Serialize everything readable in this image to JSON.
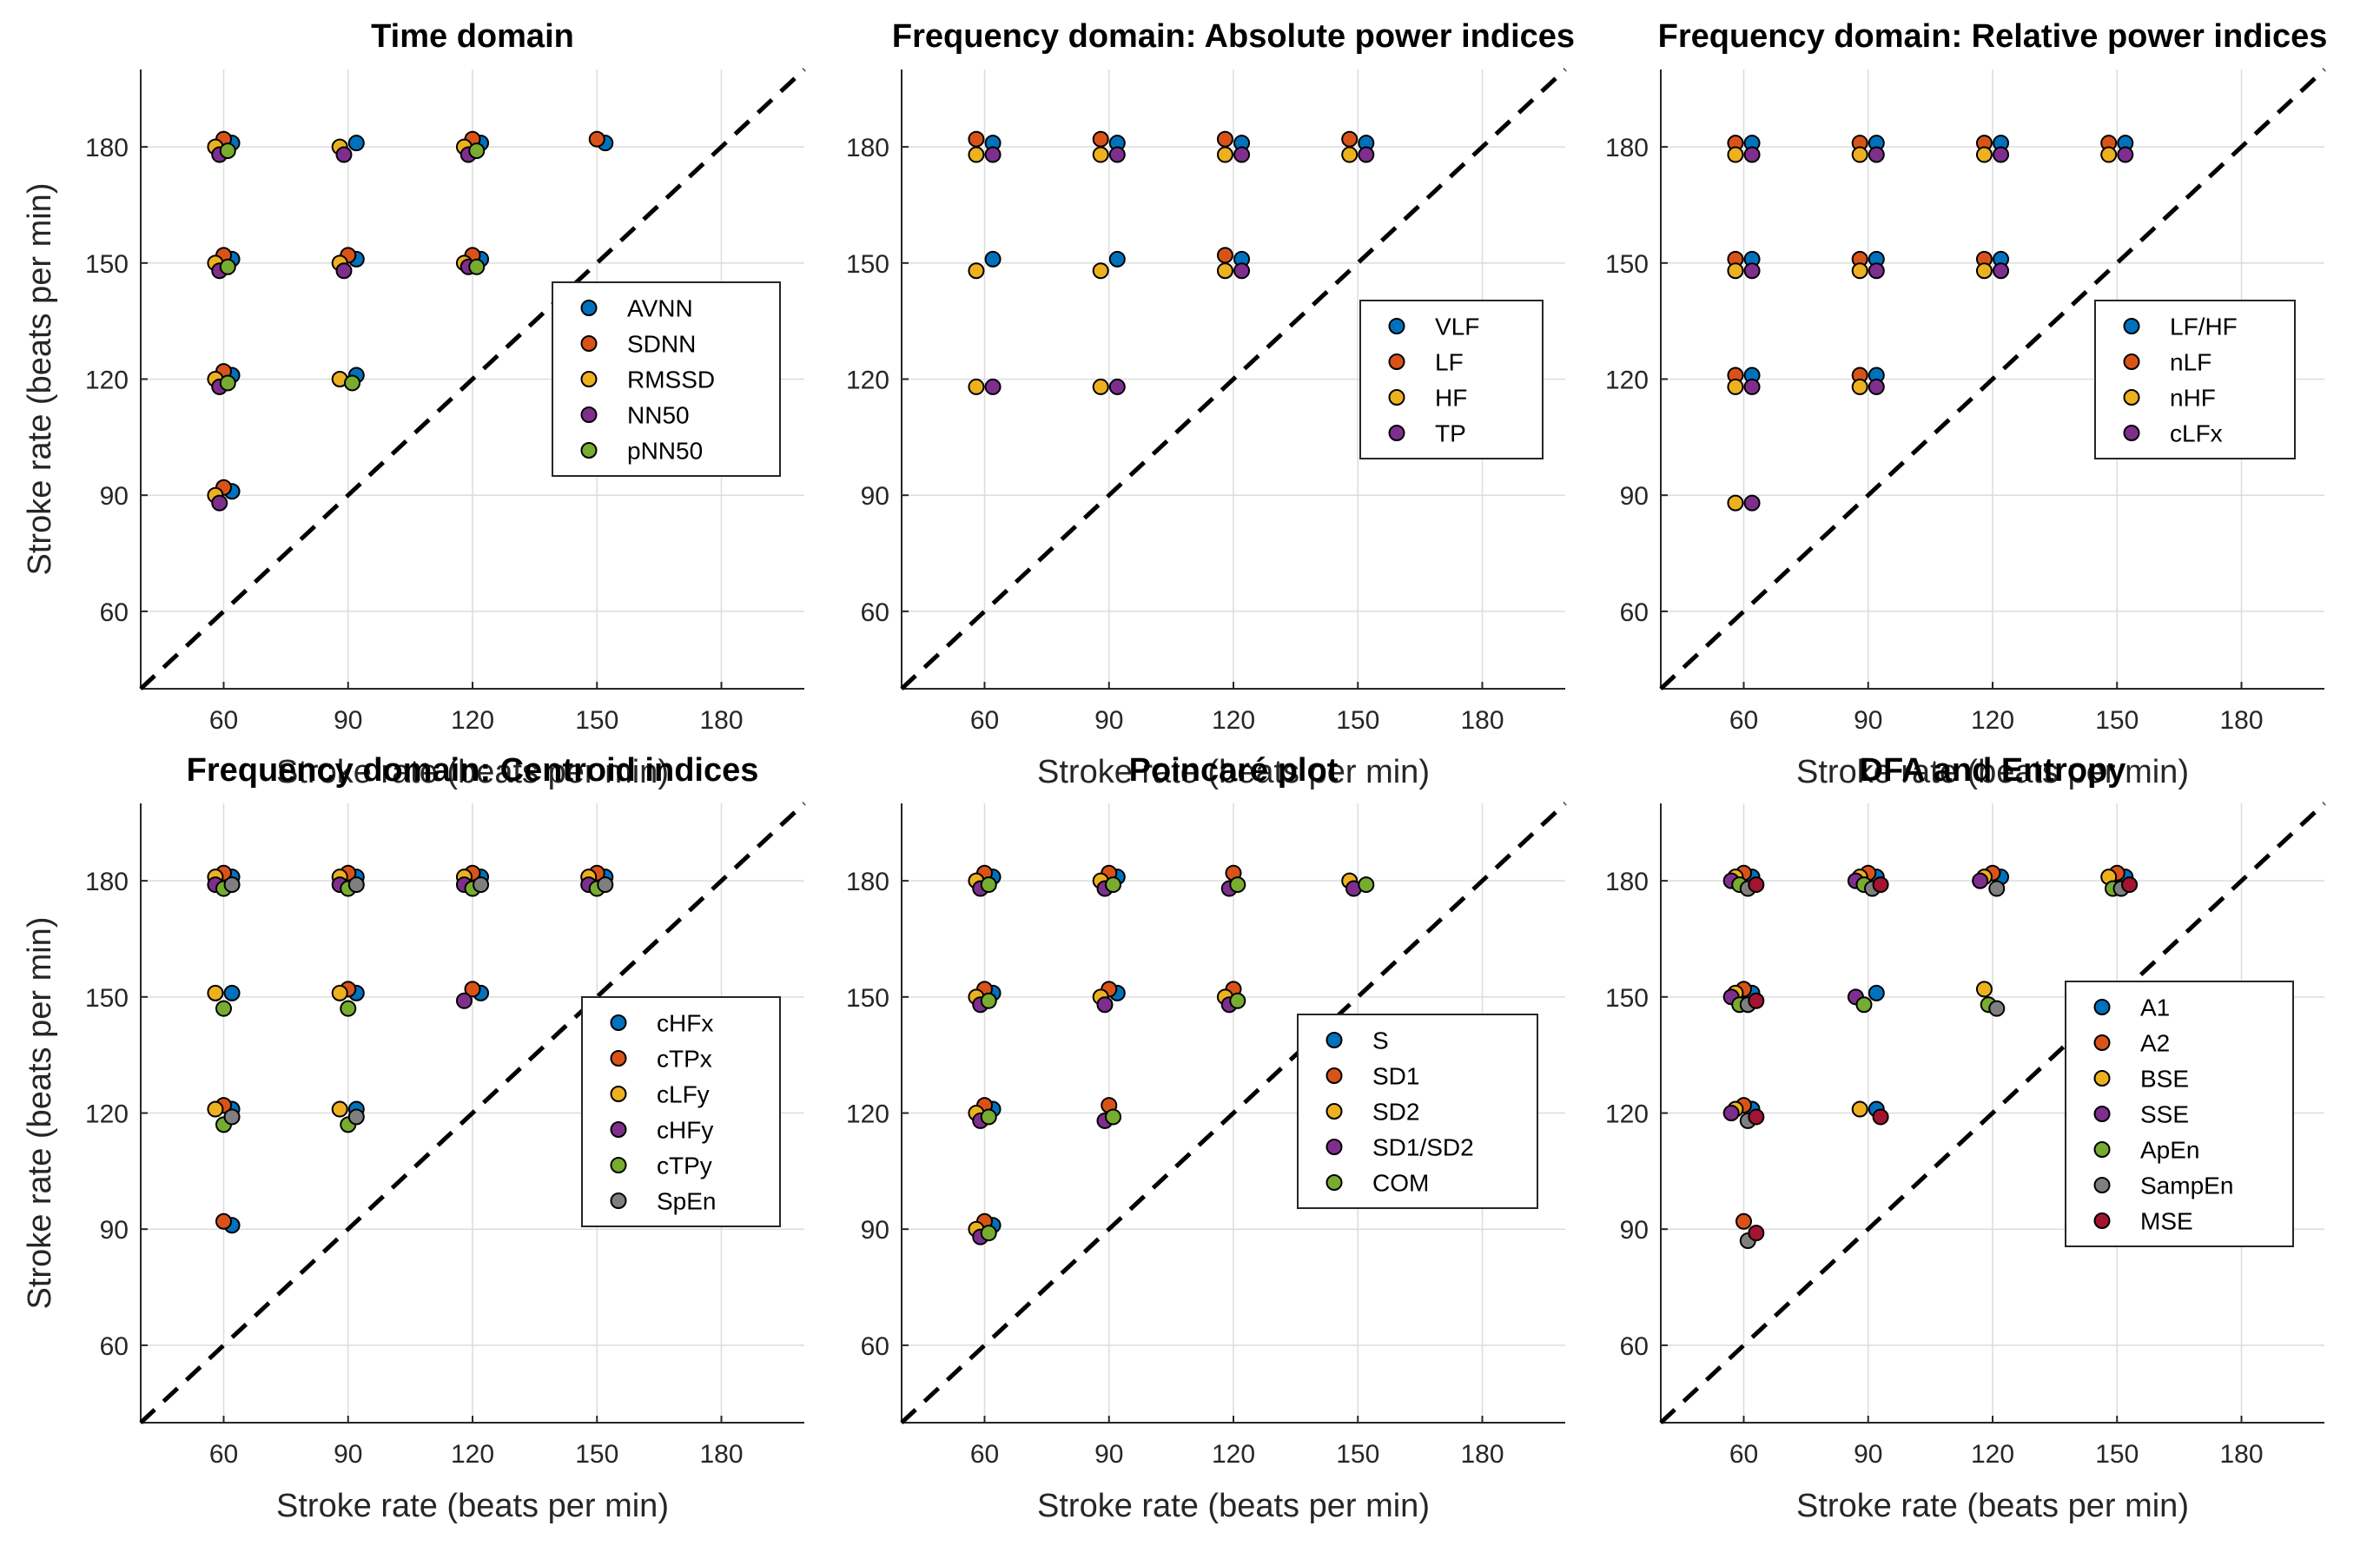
{
  "figure": {
    "xlabel": "Stroke rate (beats per min)",
    "ylabel": "Stroke rate (beats per min)",
    "colors": {
      "blue": "#0072BD",
      "orange": "#D95319",
      "yellow": "#EDB120",
      "purple": "#7E2F8E",
      "green": "#77AC30",
      "gray": "#7F7F7F",
      "red": "#A2142F",
      "grid": "#DCDCDC",
      "axis": "#262626"
    }
  },
  "chart_data": [
    {
      "type": "scatter",
      "title": "Time domain",
      "xlabel": "Stroke rate (beats per min)",
      "ylabel": "Stroke rate (beats per min)",
      "xlim": [
        40,
        200
      ],
      "ylim": [
        40,
        200
      ],
      "xticks": [
        60,
        90,
        120,
        150,
        180
      ],
      "yticks": [
        60,
        90,
        120,
        150,
        180
      ],
      "grid": true,
      "diagonal": "y = x",
      "legend_position": "right",
      "series": [
        {
          "name": "AVNN",
          "color": "#0072BD",
          "x": [
            62,
            62,
            62,
            62,
            92,
            92,
            92,
            122,
            122,
            152
          ],
          "y": [
            181,
            151,
            121,
            91,
            181,
            151,
            121,
            181,
            151,
            181
          ]
        },
        {
          "name": "SDNN",
          "color": "#D95319",
          "x": [
            60,
            60,
            60,
            60,
            90,
            120,
            120,
            150
          ],
          "y": [
            182,
            152,
            122,
            92,
            152,
            182,
            152,
            182
          ]
        },
        {
          "name": "RMSSD",
          "color": "#EDB120",
          "x": [
            58,
            58,
            58,
            58,
            88,
            88,
            88,
            118,
            118
          ],
          "y": [
            180,
            150,
            120,
            90,
            180,
            150,
            120,
            180,
            150
          ]
        },
        {
          "name": "NN50",
          "color": "#7E2F8E",
          "x": [
            59,
            59,
            59,
            59,
            89,
            89,
            119,
            119
          ],
          "y": [
            178,
            148,
            118,
            88,
            178,
            148,
            178,
            149
          ]
        },
        {
          "name": "pNN50",
          "color": "#77AC30",
          "x": [
            61,
            61,
            61,
            91,
            121,
            121
          ],
          "y": [
            179,
            149,
            119,
            119,
            179,
            149
          ]
        }
      ]
    },
    {
      "type": "scatter",
      "title": "Frequency domain: Absolute power indices",
      "xlabel": "Stroke rate (beats per min)",
      "ylabel": "",
      "xlim": [
        40,
        200
      ],
      "ylim": [
        40,
        200
      ],
      "xticks": [
        60,
        90,
        120,
        150,
        180
      ],
      "yticks": [
        60,
        90,
        120,
        150,
        180
      ],
      "grid": true,
      "diagonal": "y = x",
      "legend_position": "right",
      "series": [
        {
          "name": "VLF",
          "color": "#0072BD",
          "x": [
            62,
            62,
            92,
            92,
            122,
            122,
            152
          ],
          "y": [
            181,
            151,
            181,
            151,
            181,
            151,
            181
          ]
        },
        {
          "name": "LF",
          "color": "#D95319",
          "x": [
            58,
            88,
            118,
            118,
            148
          ],
          "y": [
            182,
            182,
            182,
            152,
            182
          ]
        },
        {
          "name": "HF",
          "color": "#EDB120",
          "x": [
            58,
            58,
            58,
            88,
            88,
            88,
            118,
            118,
            148
          ],
          "y": [
            178,
            148,
            118,
            178,
            148,
            118,
            178,
            148,
            178
          ]
        },
        {
          "name": "TP",
          "color": "#7E2F8E",
          "x": [
            62,
            62,
            92,
            92,
            122,
            122,
            152
          ],
          "y": [
            178,
            118,
            178,
            118,
            178,
            148,
            178
          ]
        }
      ]
    },
    {
      "type": "scatter",
      "title": "Frequency domain: Relative power indices",
      "xlabel": "Stroke rate (beats per min)",
      "ylabel": "",
      "xlim": [
        40,
        200
      ],
      "ylim": [
        40,
        200
      ],
      "xticks": [
        60,
        90,
        120,
        150,
        180
      ],
      "yticks": [
        60,
        90,
        120,
        150,
        180
      ],
      "grid": true,
      "diagonal": "y = x",
      "legend_position": "right",
      "series": [
        {
          "name": "LF/HF",
          "color": "#0072BD",
          "x": [
            62,
            62,
            62,
            92,
            92,
            92,
            122,
            122,
            152
          ],
          "y": [
            181,
            151,
            121,
            181,
            151,
            121,
            181,
            151,
            181
          ]
        },
        {
          "name": "nLF",
          "color": "#D95319",
          "x": [
            58,
            58,
            58,
            88,
            88,
            88,
            118,
            118,
            148
          ],
          "y": [
            181,
            151,
            121,
            181,
            151,
            121,
            181,
            151,
            181
          ]
        },
        {
          "name": "nHF",
          "color": "#EDB120",
          "x": [
            58,
            58,
            58,
            58,
            88,
            88,
            88,
            118,
            118,
            148
          ],
          "y": [
            178,
            148,
            118,
            88,
            178,
            148,
            118,
            178,
            148,
            178
          ]
        },
        {
          "name": "cLFx",
          "color": "#7E2F8E",
          "x": [
            62,
            62,
            62,
            62,
            92,
            92,
            92,
            122,
            122,
            152
          ],
          "y": [
            178,
            148,
            118,
            88,
            178,
            148,
            118,
            178,
            148,
            178
          ]
        }
      ]
    },
    {
      "type": "scatter",
      "title": "Frequency domain: Centroid indices",
      "xlabel": "Stroke rate (beats per min)",
      "ylabel": "Stroke rate (beats per min)",
      "xlim": [
        40,
        200
      ],
      "ylim": [
        40,
        200
      ],
      "xticks": [
        60,
        90,
        120,
        150,
        180
      ],
      "yticks": [
        60,
        90,
        120,
        150,
        180
      ],
      "grid": true,
      "diagonal": "y = x",
      "legend_position": "right",
      "series": [
        {
          "name": "cHFx",
          "color": "#0072BD",
          "x": [
            62,
            62,
            62,
            62,
            92,
            92,
            92,
            122,
            122,
            152
          ],
          "y": [
            181,
            151,
            121,
            91,
            181,
            151,
            121,
            181,
            151,
            181
          ]
        },
        {
          "name": "cTPx",
          "color": "#D95319",
          "x": [
            60,
            60,
            60,
            90,
            90,
            120,
            120,
            150
          ],
          "y": [
            182,
            122,
            92,
            182,
            152,
            182,
            152,
            182
          ]
        },
        {
          "name": "cLFy",
          "color": "#EDB120",
          "x": [
            58,
            58,
            58,
            88,
            88,
            88,
            118,
            148
          ],
          "y": [
            181,
            151,
            121,
            181,
            151,
            121,
            181,
            181
          ]
        },
        {
          "name": "cHFy",
          "color": "#7E2F8E",
          "x": [
            58,
            88,
            118,
            118,
            148
          ],
          "y": [
            179,
            179,
            179,
            149,
            179
          ]
        },
        {
          "name": "cTPy",
          "color": "#77AC30",
          "x": [
            60,
            60,
            60,
            90,
            90,
            90,
            120,
            150
          ],
          "y": [
            178,
            147,
            117,
            178,
            147,
            117,
            178,
            178
          ]
        },
        {
          "name": "SpEn",
          "color": "#7F7F7F",
          "x": [
            62,
            62,
            92,
            92,
            122,
            152
          ],
          "y": [
            179,
            119,
            179,
            119,
            179,
            179
          ]
        }
      ]
    },
    {
      "type": "scatter",
      "title": "Poincaré plot",
      "xlabel": "Stroke rate (beats per min)",
      "ylabel": "",
      "xlim": [
        40,
        200
      ],
      "ylim": [
        40,
        200
      ],
      "xticks": [
        60,
        90,
        120,
        150,
        180
      ],
      "yticks": [
        60,
        90,
        120,
        150,
        180
      ],
      "grid": true,
      "diagonal": "y = x",
      "legend_position": "right",
      "series": [
        {
          "name": "S",
          "color": "#0072BD",
          "x": [
            62,
            62,
            62,
            62,
            92,
            92
          ],
          "y": [
            181,
            151,
            121,
            91,
            181,
            151
          ]
        },
        {
          "name": "SD1",
          "color": "#D95319",
          "x": [
            60,
            60,
            60,
            60,
            90,
            90,
            90,
            120,
            120
          ],
          "y": [
            182,
            152,
            122,
            92,
            182,
            152,
            122,
            182,
            152
          ]
        },
        {
          "name": "SD2",
          "color": "#EDB120",
          "x": [
            58,
            58,
            58,
            58,
            88,
            88,
            118,
            148
          ],
          "y": [
            180,
            150,
            120,
            90,
            180,
            150,
            150,
            180
          ]
        },
        {
          "name": "SD1/SD2",
          "color": "#7E2F8E",
          "x": [
            59,
            59,
            59,
            59,
            89,
            89,
            89,
            119,
            119,
            149
          ],
          "y": [
            178,
            148,
            118,
            88,
            178,
            148,
            118,
            178,
            148,
            178
          ]
        },
        {
          "name": "COM",
          "color": "#77AC30",
          "x": [
            61,
            61,
            61,
            61,
            91,
            91,
            121,
            121,
            152
          ],
          "y": [
            179,
            149,
            119,
            89,
            179,
            119,
            179,
            149,
            179
          ]
        }
      ]
    },
    {
      "type": "scatter",
      "title": "DFA and Entropy",
      "xlabel": "Stroke rate (beats per min)",
      "ylabel": "",
      "xlim": [
        40,
        200
      ],
      "ylim": [
        40,
        200
      ],
      "xticks": [
        60,
        90,
        120,
        150,
        180
      ],
      "yticks": [
        60,
        90,
        120,
        150,
        180
      ],
      "grid": true,
      "diagonal": "y = x",
      "legend_position": "right",
      "series": [
        {
          "name": "A1",
          "color": "#0072BD",
          "x": [
            62,
            62,
            62,
            92,
            92,
            92,
            122,
            152
          ],
          "y": [
            181,
            151,
            121,
            181,
            151,
            121,
            181,
            181
          ]
        },
        {
          "name": "A2",
          "color": "#D95319",
          "x": [
            60,
            60,
            60,
            60,
            90,
            120,
            150
          ],
          "y": [
            182,
            152,
            122,
            92,
            182,
            182,
            182
          ]
        },
        {
          "name": "BSE",
          "color": "#EDB120",
          "x": [
            58,
            58,
            58,
            88,
            88,
            118,
            118,
            148
          ],
          "y": [
            181,
            151,
            121,
            181,
            121,
            181,
            152,
            181
          ]
        },
        {
          "name": "SSE",
          "color": "#7E2F8E",
          "x": [
            57,
            57,
            57,
            87,
            87,
            117
          ],
          "y": [
            180,
            150,
            120,
            180,
            150,
            180
          ]
        },
        {
          "name": "ApEn",
          "color": "#77AC30",
          "x": [
            59,
            59,
            89,
            89,
            119,
            149
          ],
          "y": [
            179,
            148,
            179,
            148,
            148,
            178
          ]
        },
        {
          "name": "SampEn",
          "color": "#7F7F7F",
          "x": [
            61,
            61,
            61,
            61,
            91,
            121,
            121,
            151
          ],
          "y": [
            178,
            148,
            118,
            87,
            178,
            178,
            147,
            178
          ]
        },
        {
          "name": "MSE",
          "color": "#A2142F",
          "x": [
            63,
            63,
            63,
            63,
            93,
            93,
            153
          ],
          "y": [
            179,
            149,
            119,
            89,
            179,
            119,
            179
          ]
        }
      ]
    }
  ]
}
